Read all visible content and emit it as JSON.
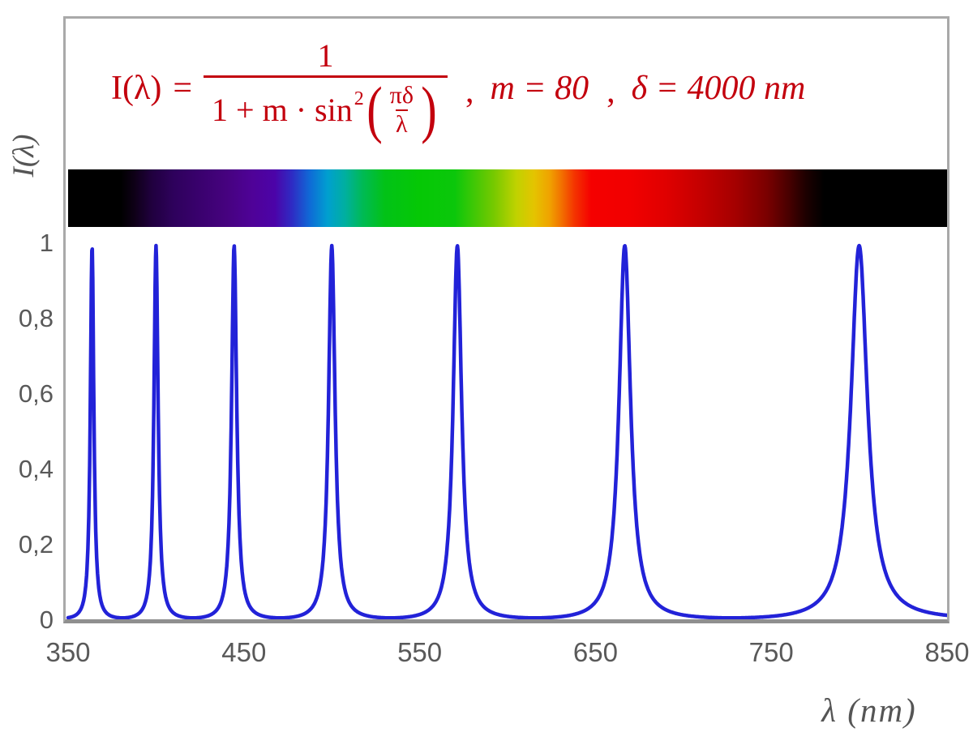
{
  "chart_data": {
    "type": "line",
    "title": "",
    "formula": {
      "lhs": "I(λ)",
      "eq": "=",
      "numerator": "1",
      "denom_text": "1 + m · sin",
      "denom_sup": "2",
      "open_paren": "(",
      "close_paren": ")",
      "inner_num": "πδ",
      "inner_den": "λ",
      "comma": ",",
      "param_m": "m = 80",
      "param_delta": "δ = 4000 nm"
    },
    "function": {
      "definition": "I(λ) = 1 / (1 + m·sin²(π·δ/λ))",
      "m": 80,
      "delta_nm": 4000,
      "lambda_min_nm": 350,
      "lambda_max_nm": 850
    },
    "peaks_nm": [
      363.64,
      400,
      444.44,
      500,
      571.43,
      666.67,
      800
    ],
    "peak_value": 1,
    "valley_value": 0.0123,
    "x_axis": {
      "label": "λ  (nm)",
      "min": 350,
      "max": 850,
      "ticks": [
        {
          "value": 350,
          "label": "350"
        },
        {
          "value": 450,
          "label": "450"
        },
        {
          "value": 550,
          "label": "550"
        },
        {
          "value": 650,
          "label": "650"
        },
        {
          "value": 750,
          "label": "750"
        },
        {
          "value": 850,
          "label": "850"
        }
      ]
    },
    "y_axis": {
      "label": "I(λ)",
      "min": 0,
      "max": 1,
      "ticks": [
        {
          "value": 0,
          "label": "0"
        },
        {
          "value": 0.2,
          "label": "0,2"
        },
        {
          "value": 0.4,
          "label": "0,4"
        },
        {
          "value": 0.6,
          "label": "0,6"
        },
        {
          "value": 0.8,
          "label": "0,8"
        },
        {
          "value": 1,
          "label": "1"
        }
      ]
    },
    "grid": false,
    "legend": null,
    "curve_color": "#2222d8",
    "formula_color": "#c3000d",
    "label_color": "#595959",
    "frame_color": "#a9a9a9"
  },
  "spectrum_bar": {
    "range_nm": [
      350,
      850
    ],
    "stops": [
      {
        "p": 0,
        "c": "#000000"
      },
      {
        "p": 6,
        "c": "#000000"
      },
      {
        "p": 7.5,
        "c": "#0e0016"
      },
      {
        "p": 9.5,
        "c": "#20003e"
      },
      {
        "p": 12,
        "c": "#2e015c"
      },
      {
        "p": 15,
        "c": "#3a016e"
      },
      {
        "p": 18,
        "c": "#46027f"
      },
      {
        "p": 21,
        "c": "#4f0298"
      },
      {
        "p": 23.5,
        "c": "#4c03a8"
      },
      {
        "p": 25.5,
        "c": "#2e2cc4"
      },
      {
        "p": 27.5,
        "c": "#0f6ad6"
      },
      {
        "p": 29.5,
        "c": "#009fd0"
      },
      {
        "p": 31.5,
        "c": "#00afa0"
      },
      {
        "p": 33.5,
        "c": "#00ba55"
      },
      {
        "p": 36,
        "c": "#02c217"
      },
      {
        "p": 40,
        "c": "#05c805"
      },
      {
        "p": 44,
        "c": "#0bc70b"
      },
      {
        "p": 48.5,
        "c": "#78c900"
      },
      {
        "p": 51,
        "c": "#c0d200"
      },
      {
        "p": 53,
        "c": "#e4c400"
      },
      {
        "p": 54.8,
        "c": "#f0a200"
      },
      {
        "p": 56.2,
        "c": "#f26e00"
      },
      {
        "p": 57.6,
        "c": "#f43400"
      },
      {
        "p": 59.5,
        "c": "#f50000"
      },
      {
        "p": 64,
        "c": "#f10000"
      },
      {
        "p": 68,
        "c": "#e00000"
      },
      {
        "p": 72,
        "c": "#c40000"
      },
      {
        "p": 76,
        "c": "#a40000"
      },
      {
        "p": 79.5,
        "c": "#7a0000"
      },
      {
        "p": 82,
        "c": "#480000"
      },
      {
        "p": 84,
        "c": "#1c0000"
      },
      {
        "p": 86,
        "c": "#000000"
      },
      {
        "p": 100,
        "c": "#000000"
      }
    ]
  }
}
